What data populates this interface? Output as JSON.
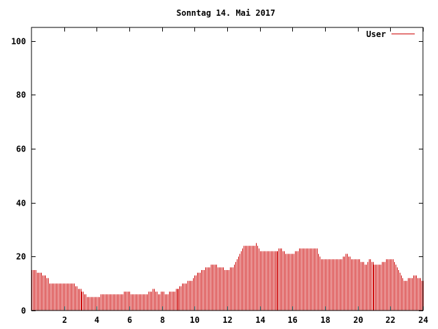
{
  "chart_data": {
    "type": "bar",
    "title": "Sonntag 14. Mai 2017",
    "xlabel": "",
    "ylabel": "",
    "xlim": [
      0,
      24
    ],
    "ylim": [
      0,
      105
    ],
    "grid": false,
    "legend_position": "top-right",
    "x_ticks": [
      "2",
      "4",
      "6",
      "8",
      "10",
      "12",
      "14",
      "16",
      "18",
      "20",
      "22",
      "24"
    ],
    "y_ticks": [
      "0",
      "20",
      "40",
      "60",
      "80",
      "100"
    ],
    "series": [
      {
        "name": "User",
        "color": "#cc0000",
        "points": [
          [
            0.0,
            15
          ],
          [
            0.5,
            14
          ],
          [
            1.0,
            12
          ],
          [
            1.1,
            10
          ],
          [
            2.0,
            10
          ],
          [
            2.3,
            10
          ],
          [
            2.5,
            10
          ],
          [
            2.7,
            9
          ],
          [
            3.2,
            7
          ],
          [
            3.4,
            5
          ],
          [
            3.7,
            5
          ],
          [
            4.0,
            5
          ],
          [
            4.5,
            6
          ],
          [
            5.0,
            6
          ],
          [
            5.5,
            6
          ],
          [
            5.8,
            7
          ],
          [
            6.2,
            6
          ],
          [
            7.0,
            6
          ],
          [
            7.2,
            7
          ],
          [
            7.5,
            8
          ],
          [
            7.8,
            6
          ],
          [
            8.0,
            7
          ],
          [
            8.2,
            6
          ],
          [
            8.6,
            7
          ],
          [
            9.0,
            8
          ],
          [
            9.3,
            10
          ],
          [
            9.8,
            11
          ],
          [
            10.2,
            14
          ],
          [
            10.8,
            16
          ],
          [
            11.2,
            17
          ],
          [
            11.6,
            16
          ],
          [
            12.0,
            15
          ],
          [
            12.3,
            16
          ],
          [
            12.6,
            19
          ],
          [
            13.0,
            24
          ],
          [
            13.6,
            24
          ],
          [
            13.8,
            25
          ],
          [
            14.0,
            22
          ],
          [
            14.5,
            22
          ],
          [
            15.0,
            22
          ],
          [
            15.3,
            23
          ],
          [
            15.6,
            21
          ],
          [
            16.0,
            21
          ],
          [
            16.3,
            22
          ],
          [
            16.5,
            23
          ],
          [
            17.3,
            23
          ],
          [
            17.5,
            23
          ],
          [
            17.7,
            19
          ],
          [
            18.0,
            19
          ],
          [
            18.5,
            19
          ],
          [
            19.0,
            19
          ],
          [
            19.3,
            21
          ],
          [
            19.6,
            19
          ],
          [
            20.0,
            19
          ],
          [
            20.5,
            17
          ],
          [
            20.7,
            19
          ],
          [
            21.0,
            17
          ],
          [
            21.3,
            17
          ],
          [
            21.6,
            18
          ],
          [
            21.8,
            19
          ],
          [
            22.2,
            19
          ],
          [
            22.5,
            15
          ],
          [
            22.8,
            11
          ],
          [
            23.2,
            12
          ],
          [
            23.5,
            13
          ],
          [
            23.8,
            12
          ],
          [
            24.0,
            11
          ]
        ]
      }
    ]
  }
}
